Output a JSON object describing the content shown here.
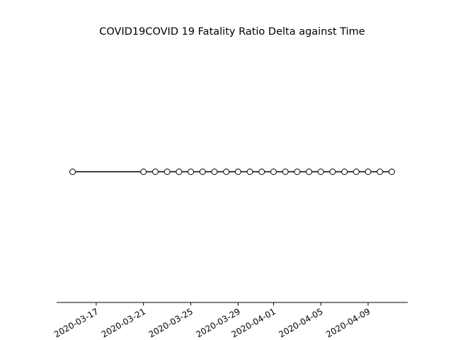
{
  "chart_data": {
    "type": "line",
    "title": "COVID19COVID 19 Fatality Ratio Delta against Time",
    "xlabel": "",
    "ylabel": "",
    "x_type": "date",
    "x": [
      "2020-03-15",
      "2020-03-21",
      "2020-03-22",
      "2020-03-23",
      "2020-03-24",
      "2020-03-25",
      "2020-03-26",
      "2020-03-27",
      "2020-03-28",
      "2020-03-29",
      "2020-03-30",
      "2020-03-31",
      "2020-04-01",
      "2020-04-02",
      "2020-04-03",
      "2020-04-04",
      "2020-04-05",
      "2020-04-06",
      "2020-04-07",
      "2020-04-08",
      "2020-04-09",
      "2020-04-10",
      "2020-04-11"
    ],
    "series": [
      {
        "values": [
          0,
          0,
          0,
          0,
          0,
          0,
          0,
          0,
          0,
          0,
          0,
          0,
          0,
          0,
          0,
          0,
          0,
          0,
          0,
          0,
          0,
          0,
          0
        ],
        "color": "#000000",
        "marker": "circle",
        "marker_face": "#ffffff"
      }
    ],
    "x_ticks": [
      "2020-03-17",
      "2020-03-21",
      "2020-03-25",
      "2020-03-29",
      "2020-04-01",
      "2020-04-05",
      "2020-04-09"
    ],
    "tick_rotation": 30,
    "ylim": [
      -0.055,
      0.055
    ],
    "y_axis_visible": false,
    "grid": false,
    "legend": "none"
  }
}
